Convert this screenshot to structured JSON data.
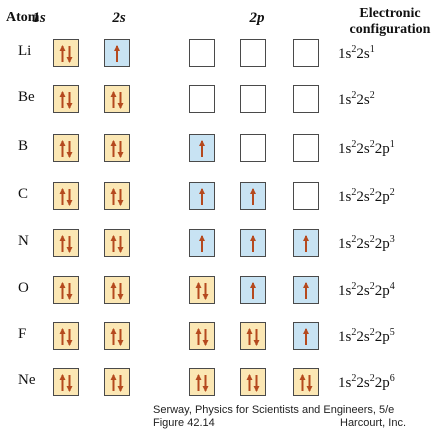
{
  "headers": {
    "atom": "Atom",
    "s1": "1s",
    "s2": "2s",
    "p2": "2p",
    "config_line1": "Electronic",
    "config_line2": "configuration"
  },
  "colors": {
    "full_box": "#fbe7b4",
    "half_box": "#c8e3f3",
    "arrow": "#b5491e"
  },
  "rows": [
    {
      "atom": "Li",
      "orbitals": [
        "updown",
        "up",
        "empty",
        "empty",
        "empty"
      ],
      "config": [
        [
          "1s",
          "2"
        ],
        [
          "2s",
          "1"
        ]
      ]
    },
    {
      "atom": "Be",
      "orbitals": [
        "updown",
        "updown",
        "empty",
        "empty",
        "empty"
      ],
      "config": [
        [
          "1s",
          "2"
        ],
        [
          "2s",
          "2"
        ]
      ]
    },
    {
      "atom": "B",
      "orbitals": [
        "updown",
        "updown",
        "up",
        "empty",
        "empty"
      ],
      "config": [
        [
          "1s",
          "2"
        ],
        [
          "2s",
          "2"
        ],
        [
          "2p",
          "1"
        ]
      ]
    },
    {
      "atom": "C",
      "orbitals": [
        "updown",
        "updown",
        "up",
        "up",
        "empty"
      ],
      "config": [
        [
          "1s",
          "2"
        ],
        [
          "2s",
          "2"
        ],
        [
          "2p",
          "2"
        ]
      ]
    },
    {
      "atom": "N",
      "orbitals": [
        "updown",
        "updown",
        "up",
        "up",
        "up"
      ],
      "config": [
        [
          "1s",
          "2"
        ],
        [
          "2s",
          "2"
        ],
        [
          "2p",
          "3"
        ]
      ]
    },
    {
      "atom": "O",
      "orbitals": [
        "updown",
        "updown",
        "updown",
        "up",
        "up"
      ],
      "config": [
        [
          "1s",
          "2"
        ],
        [
          "2s",
          "2"
        ],
        [
          "2p",
          "4"
        ]
      ]
    },
    {
      "atom": "F",
      "orbitals": [
        "updown",
        "updown",
        "updown",
        "updown",
        "up"
      ],
      "config": [
        [
          "1s",
          "2"
        ],
        [
          "2s",
          "2"
        ],
        [
          "2p",
          "5"
        ]
      ]
    },
    {
      "atom": "Ne",
      "orbitals": [
        "updown",
        "updown",
        "updown",
        "updown",
        "updown"
      ],
      "config": [
        [
          "1s",
          "2"
        ],
        [
          "2s",
          "2"
        ],
        [
          "2p",
          "6"
        ]
      ]
    }
  ],
  "credit": {
    "line1": "Serway, Physics for Scientists and Engineers, 5/e",
    "line2": "Figure 42.14",
    "publisher": "Harcourt, Inc."
  }
}
